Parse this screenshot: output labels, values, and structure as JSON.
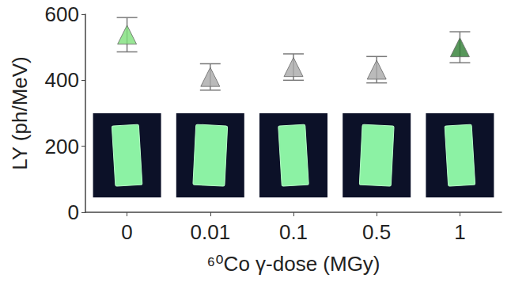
{
  "chart_data": {
    "type": "scatter",
    "categories": [
      "0",
      "0.01",
      "0.1",
      "0.5",
      "1"
    ],
    "values": [
      538,
      410,
      440,
      432,
      500
    ],
    "errors": [
      52,
      40,
      40,
      40,
      47
    ],
    "colors": [
      "#7ee07a",
      "#a9a9a9",
      "#a9a9a9",
      "#a9a9a9",
      "#2e7d32"
    ],
    "marker": "triangle",
    "xlabel": "⁶⁰Co γ-dose (MGy)",
    "ylabel": "LY (ph/MeV)",
    "ylim": [
      0,
      600
    ],
    "yticks": [
      0,
      200,
      400,
      600
    ],
    "grid": false
  }
}
